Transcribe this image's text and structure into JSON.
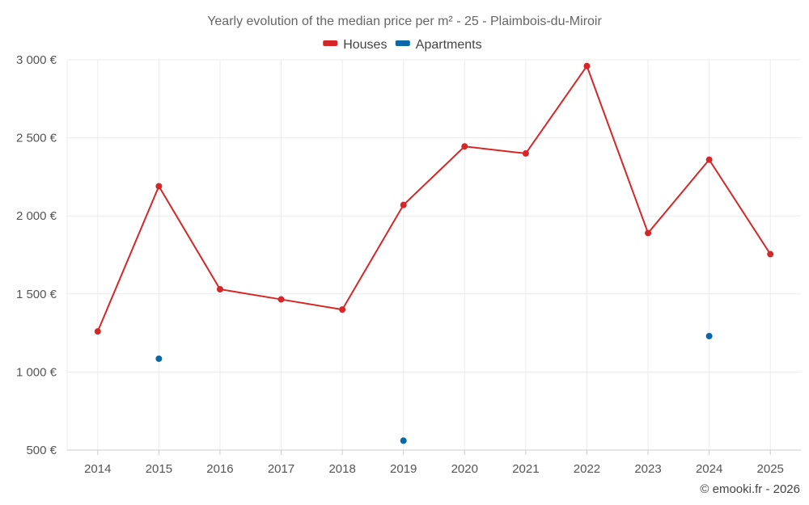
{
  "chart_data": {
    "type": "line",
    "title": "Yearly evolution of the median price per m² - 25 - Plaimbois-du-Miroir",
    "categories": [
      "2014",
      "2015",
      "2016",
      "2017",
      "2018",
      "2019",
      "2020",
      "2021",
      "2022",
      "2023",
      "2024",
      "2025"
    ],
    "series": [
      {
        "name": "Houses",
        "color": "#d62728",
        "style": "line",
        "values": [
          1260,
          2190,
          1530,
          1465,
          1400,
          2070,
          2445,
          2400,
          2960,
          1890,
          2360,
          1755
        ]
      },
      {
        "name": "Apartments",
        "color": "#0868a8",
        "style": "points",
        "values": [
          null,
          1085,
          null,
          null,
          null,
          560,
          null,
          null,
          null,
          null,
          1230,
          null
        ]
      }
    ],
    "ylim": [
      500,
      3000
    ],
    "yticks": [
      500,
      1000,
      1500,
      2000,
      2500,
      3000
    ],
    "ytick_labels": [
      "500 €",
      "1 000 €",
      "1 500 €",
      "2 000 €",
      "2 500 €",
      "3 000 €"
    ],
    "legend_position": "top-center",
    "grid": true
  },
  "credit": "© emooki.fr - 2026"
}
